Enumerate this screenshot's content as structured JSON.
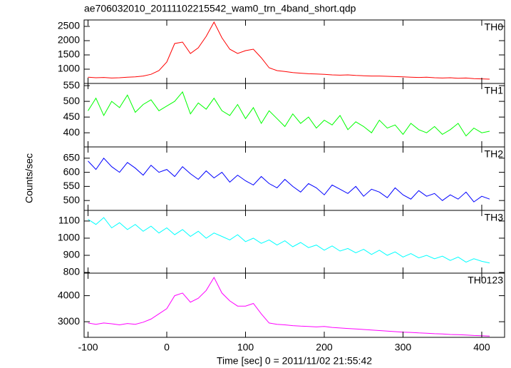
{
  "chart_data": {
    "type": "line",
    "title": "ae706032010_20111102215542_wam0_trn_4band_short.qdp",
    "y_label": "Counts/sec",
    "x_label": "Time [sec] 0 = 2011/11/02 21:55:42",
    "xlim": [
      -105,
      429
    ],
    "xticks": [
      -100,
      0,
      100,
      200,
      300,
      400
    ],
    "x": [
      -100,
      -90,
      -80,
      -70,
      -60,
      -50,
      -40,
      -30,
      -20,
      -10,
      0,
      10,
      20,
      30,
      40,
      50,
      60,
      70,
      80,
      90,
      100,
      110,
      120,
      130,
      140,
      150,
      160,
      170,
      180,
      190,
      200,
      210,
      220,
      230,
      240,
      250,
      260,
      270,
      280,
      290,
      300,
      310,
      320,
      330,
      340,
      350,
      360,
      370,
      380,
      390,
      400,
      410
    ],
    "series": [
      {
        "name": "TH0",
        "color": "#ff0000",
        "ylim": [
          500,
          2725
        ],
        "yticks": [
          1000,
          1500,
          2000,
          2500
        ],
        "values": [
          720,
          700,
          710,
          690,
          700,
          720,
          730,
          760,
          820,
          950,
          1250,
          1900,
          1950,
          1550,
          1750,
          2150,
          2650,
          2100,
          1700,
          1550,
          1650,
          1700,
          1400,
          1050,
          950,
          920,
          880,
          860,
          840,
          830,
          820,
          800,
          790,
          800,
          780,
          770,
          760,
          760,
          750,
          740,
          730,
          720,
          710,
          720,
          700,
          690,
          700,
          680,
          690,
          670,
          660,
          650
        ]
      },
      {
        "name": "TH1",
        "color": "#00ff00",
        "ylim": [
          355,
          557
        ],
        "yticks": [
          400,
          450,
          500,
          550
        ],
        "values": [
          470,
          510,
          455,
          500,
          480,
          520,
          465,
          490,
          505,
          470,
          485,
          500,
          530,
          460,
          495,
          475,
          510,
          470,
          455,
          490,
          445,
          480,
          430,
          470,
          445,
          420,
          460,
          430,
          450,
          415,
          440,
          425,
          455,
          410,
          435,
          420,
          400,
          440,
          415,
          425,
          395,
          430,
          410,
          400,
          420,
          395,
          410,
          430,
          390,
          415,
          400,
          405
        ]
      },
      {
        "name": "TH2",
        "color": "#0000ff",
        "ylim": [
          465,
          690
        ],
        "yticks": [
          500,
          550,
          600,
          650
        ],
        "values": [
          640,
          610,
          650,
          620,
          600,
          635,
          615,
          590,
          625,
          600,
          610,
          585,
          620,
          595,
          575,
          605,
          580,
          600,
          565,
          590,
          570,
          555,
          585,
          560,
          545,
          575,
          550,
          530,
          560,
          545,
          520,
          555,
          540,
          525,
          550,
          515,
          540,
          530,
          510,
          545,
          520,
          505,
          535,
          515,
          525,
          500,
          520,
          505,
          530,
          495,
          515,
          505
        ]
      },
      {
        "name": "TH3",
        "color": "#00ffff",
        "ylim": [
          796,
          1162
        ],
        "yticks": [
          800,
          900,
          1000,
          1100
        ],
        "values": [
          1110,
          1080,
          1120,
          1060,
          1090,
          1050,
          1080,
          1040,
          1070,
          1030,
          1060,
          1020,
          1050,
          1010,
          1040,
          1000,
          1030,
          1010,
          990,
          1020,
          980,
          1000,
          970,
          990,
          960,
          985,
          950,
          975,
          945,
          960,
          930,
          955,
          925,
          940,
          915,
          935,
          905,
          930,
          900,
          920,
          890,
          910,
          885,
          900,
          880,
          895,
          870,
          890,
          860,
          880,
          865,
          855
        ]
      },
      {
        "name": "TH0123",
        "color": "#ff00ff",
        "ylim": [
          2400,
          4865
        ],
        "yticks": [
          3000,
          4000
        ],
        "values": [
          2950,
          2900,
          2950,
          2920,
          2880,
          2930,
          2900,
          2980,
          3100,
          3300,
          3500,
          4000,
          4100,
          3750,
          3900,
          4200,
          4700,
          4100,
          3800,
          3600,
          3600,
          3700,
          3300,
          2950,
          2900,
          2880,
          2850,
          2830,
          2820,
          2800,
          2820,
          2780,
          2760,
          2740,
          2720,
          2700,
          2680,
          2660,
          2640,
          2620,
          2600,
          2590,
          2570,
          2560,
          2540,
          2530,
          2510,
          2500,
          2490,
          2470,
          2460,
          2450
        ]
      }
    ]
  }
}
